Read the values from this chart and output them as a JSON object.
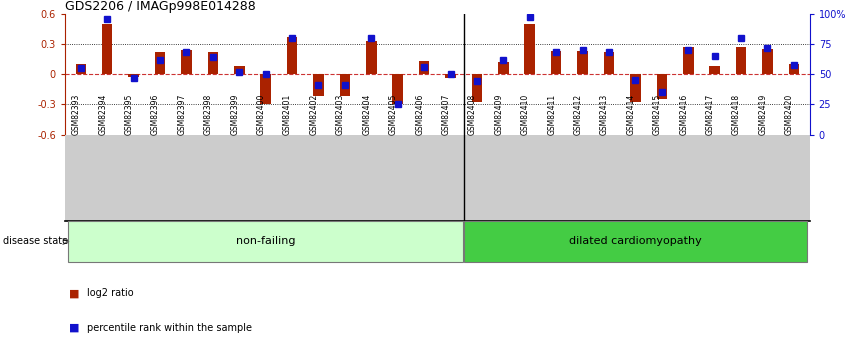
{
  "title": "GDS2206 / IMAGp998E014288",
  "samples": [
    "GSM82393",
    "GSM82394",
    "GSM82395",
    "GSM82396",
    "GSM82397",
    "GSM82398",
    "GSM82399",
    "GSM82400",
    "GSM82401",
    "GSM82402",
    "GSM82403",
    "GSM82404",
    "GSM82405",
    "GSM82406",
    "GSM82407",
    "GSM82408",
    "GSM82409",
    "GSM82410",
    "GSM82411",
    "GSM82412",
    "GSM82413",
    "GSM82414",
    "GSM82415",
    "GSM82416",
    "GSM82417",
    "GSM82418",
    "GSM82419",
    "GSM82420"
  ],
  "log2_ratio": [
    0.1,
    0.5,
    -0.03,
    0.22,
    0.24,
    0.22,
    0.08,
    -0.3,
    0.37,
    -0.22,
    -0.22,
    0.33,
    -0.3,
    0.13,
    -0.04,
    -0.28,
    0.12,
    0.5,
    0.23,
    0.23,
    0.22,
    -0.28,
    -0.25,
    0.27,
    0.08,
    0.27,
    0.25,
    0.1
  ],
  "pct_rank": [
    55,
    96,
    47,
    62,
    68,
    64,
    52,
    50,
    80,
    41,
    41,
    80,
    25,
    56,
    50,
    44,
    62,
    97,
    68,
    70,
    68,
    45,
    35,
    70,
    65,
    80,
    72,
    58
  ],
  "non_failing_count": 15,
  "ylim_left": [
    -0.6,
    0.6
  ],
  "yticks_left": [
    -0.6,
    -0.3,
    0.0,
    0.3,
    0.6
  ],
  "ytick_labels_left": [
    "-0.6",
    "-0.3",
    "0",
    "0.3",
    "0.6"
  ],
  "yticks_right": [
    0,
    25,
    50,
    75,
    100
  ],
  "ytick_labels_right": [
    "0",
    "25",
    "50",
    "75",
    "100%"
  ],
  "bar_color": "#aa2200",
  "pct_color": "#1111cc",
  "zero_line_color": "#cc3333",
  "non_failing_color": "#ccffcc",
  "dilated_color": "#44cc44",
  "non_failing_label": "non-failing",
  "dilated_label": "dilated cardiomyopathy",
  "disease_state_label": "disease state",
  "legend_log2": "log2 ratio",
  "legend_pct": "percentile rank within the sample",
  "label_bg_color": "#cccccc",
  "sep_index": 15
}
